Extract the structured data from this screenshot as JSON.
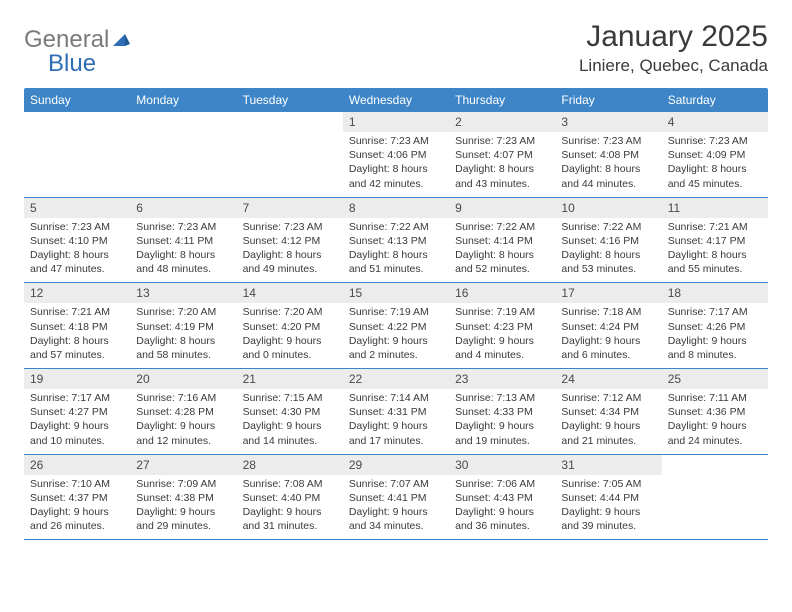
{
  "branding": {
    "word1": "General",
    "word2": "Blue",
    "color_general": "#7a7a7a",
    "color_blue": "#2f6eb5"
  },
  "title": "January 2025",
  "location": "Liniere, Quebec, Canada",
  "colors": {
    "header_bg": "#3d85c6",
    "header_fg": "#ffffff",
    "daynum_bg": "#ececec",
    "row_border": "#3d85c6",
    "text": "#3a3a3a"
  },
  "dayNames": [
    "Sunday",
    "Monday",
    "Tuesday",
    "Wednesday",
    "Thursday",
    "Friday",
    "Saturday"
  ],
  "weeks": [
    [
      {
        "empty": true
      },
      {
        "empty": true
      },
      {
        "empty": true
      },
      {
        "num": "1",
        "sunrise": "Sunrise: 7:23 AM",
        "sunset": "Sunset: 4:06 PM",
        "dl1": "Daylight: 8 hours",
        "dl2": "and 42 minutes."
      },
      {
        "num": "2",
        "sunrise": "Sunrise: 7:23 AM",
        "sunset": "Sunset: 4:07 PM",
        "dl1": "Daylight: 8 hours",
        "dl2": "and 43 minutes."
      },
      {
        "num": "3",
        "sunrise": "Sunrise: 7:23 AM",
        "sunset": "Sunset: 4:08 PM",
        "dl1": "Daylight: 8 hours",
        "dl2": "and 44 minutes."
      },
      {
        "num": "4",
        "sunrise": "Sunrise: 7:23 AM",
        "sunset": "Sunset: 4:09 PM",
        "dl1": "Daylight: 8 hours",
        "dl2": "and 45 minutes."
      }
    ],
    [
      {
        "num": "5",
        "sunrise": "Sunrise: 7:23 AM",
        "sunset": "Sunset: 4:10 PM",
        "dl1": "Daylight: 8 hours",
        "dl2": "and 47 minutes."
      },
      {
        "num": "6",
        "sunrise": "Sunrise: 7:23 AM",
        "sunset": "Sunset: 4:11 PM",
        "dl1": "Daylight: 8 hours",
        "dl2": "and 48 minutes."
      },
      {
        "num": "7",
        "sunrise": "Sunrise: 7:23 AM",
        "sunset": "Sunset: 4:12 PM",
        "dl1": "Daylight: 8 hours",
        "dl2": "and 49 minutes."
      },
      {
        "num": "8",
        "sunrise": "Sunrise: 7:22 AM",
        "sunset": "Sunset: 4:13 PM",
        "dl1": "Daylight: 8 hours",
        "dl2": "and 51 minutes."
      },
      {
        "num": "9",
        "sunrise": "Sunrise: 7:22 AM",
        "sunset": "Sunset: 4:14 PM",
        "dl1": "Daylight: 8 hours",
        "dl2": "and 52 minutes."
      },
      {
        "num": "10",
        "sunrise": "Sunrise: 7:22 AM",
        "sunset": "Sunset: 4:16 PM",
        "dl1": "Daylight: 8 hours",
        "dl2": "and 53 minutes."
      },
      {
        "num": "11",
        "sunrise": "Sunrise: 7:21 AM",
        "sunset": "Sunset: 4:17 PM",
        "dl1": "Daylight: 8 hours",
        "dl2": "and 55 minutes."
      }
    ],
    [
      {
        "num": "12",
        "sunrise": "Sunrise: 7:21 AM",
        "sunset": "Sunset: 4:18 PM",
        "dl1": "Daylight: 8 hours",
        "dl2": "and 57 minutes."
      },
      {
        "num": "13",
        "sunrise": "Sunrise: 7:20 AM",
        "sunset": "Sunset: 4:19 PM",
        "dl1": "Daylight: 8 hours",
        "dl2": "and 58 minutes."
      },
      {
        "num": "14",
        "sunrise": "Sunrise: 7:20 AM",
        "sunset": "Sunset: 4:20 PM",
        "dl1": "Daylight: 9 hours",
        "dl2": "and 0 minutes."
      },
      {
        "num": "15",
        "sunrise": "Sunrise: 7:19 AM",
        "sunset": "Sunset: 4:22 PM",
        "dl1": "Daylight: 9 hours",
        "dl2": "and 2 minutes."
      },
      {
        "num": "16",
        "sunrise": "Sunrise: 7:19 AM",
        "sunset": "Sunset: 4:23 PM",
        "dl1": "Daylight: 9 hours",
        "dl2": "and 4 minutes."
      },
      {
        "num": "17",
        "sunrise": "Sunrise: 7:18 AM",
        "sunset": "Sunset: 4:24 PM",
        "dl1": "Daylight: 9 hours",
        "dl2": "and 6 minutes."
      },
      {
        "num": "18",
        "sunrise": "Sunrise: 7:17 AM",
        "sunset": "Sunset: 4:26 PM",
        "dl1": "Daylight: 9 hours",
        "dl2": "and 8 minutes."
      }
    ],
    [
      {
        "num": "19",
        "sunrise": "Sunrise: 7:17 AM",
        "sunset": "Sunset: 4:27 PM",
        "dl1": "Daylight: 9 hours",
        "dl2": "and 10 minutes."
      },
      {
        "num": "20",
        "sunrise": "Sunrise: 7:16 AM",
        "sunset": "Sunset: 4:28 PM",
        "dl1": "Daylight: 9 hours",
        "dl2": "and 12 minutes."
      },
      {
        "num": "21",
        "sunrise": "Sunrise: 7:15 AM",
        "sunset": "Sunset: 4:30 PM",
        "dl1": "Daylight: 9 hours",
        "dl2": "and 14 minutes."
      },
      {
        "num": "22",
        "sunrise": "Sunrise: 7:14 AM",
        "sunset": "Sunset: 4:31 PM",
        "dl1": "Daylight: 9 hours",
        "dl2": "and 17 minutes."
      },
      {
        "num": "23",
        "sunrise": "Sunrise: 7:13 AM",
        "sunset": "Sunset: 4:33 PM",
        "dl1": "Daylight: 9 hours",
        "dl2": "and 19 minutes."
      },
      {
        "num": "24",
        "sunrise": "Sunrise: 7:12 AM",
        "sunset": "Sunset: 4:34 PM",
        "dl1": "Daylight: 9 hours",
        "dl2": "and 21 minutes."
      },
      {
        "num": "25",
        "sunrise": "Sunrise: 7:11 AM",
        "sunset": "Sunset: 4:36 PM",
        "dl1": "Daylight: 9 hours",
        "dl2": "and 24 minutes."
      }
    ],
    [
      {
        "num": "26",
        "sunrise": "Sunrise: 7:10 AM",
        "sunset": "Sunset: 4:37 PM",
        "dl1": "Daylight: 9 hours",
        "dl2": "and 26 minutes."
      },
      {
        "num": "27",
        "sunrise": "Sunrise: 7:09 AM",
        "sunset": "Sunset: 4:38 PM",
        "dl1": "Daylight: 9 hours",
        "dl2": "and 29 minutes."
      },
      {
        "num": "28",
        "sunrise": "Sunrise: 7:08 AM",
        "sunset": "Sunset: 4:40 PM",
        "dl1": "Daylight: 9 hours",
        "dl2": "and 31 minutes."
      },
      {
        "num": "29",
        "sunrise": "Sunrise: 7:07 AM",
        "sunset": "Sunset: 4:41 PM",
        "dl1": "Daylight: 9 hours",
        "dl2": "and 34 minutes."
      },
      {
        "num": "30",
        "sunrise": "Sunrise: 7:06 AM",
        "sunset": "Sunset: 4:43 PM",
        "dl1": "Daylight: 9 hours",
        "dl2": "and 36 minutes."
      },
      {
        "num": "31",
        "sunrise": "Sunrise: 7:05 AM",
        "sunset": "Sunset: 4:44 PM",
        "dl1": "Daylight: 9 hours",
        "dl2": "and 39 minutes."
      },
      {
        "empty": true
      }
    ]
  ]
}
